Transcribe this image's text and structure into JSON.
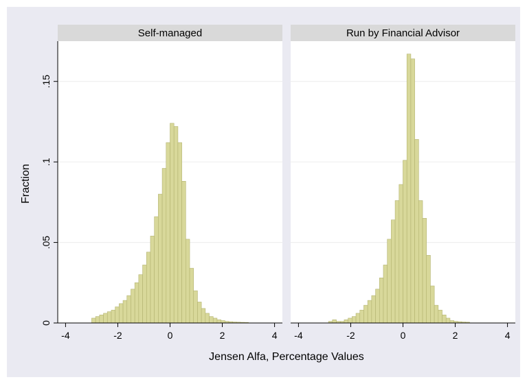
{
  "chart_data": {
    "type": "bar",
    "ylabel": "Fraction",
    "xlabel": "Jensen Alfa, Percentage Values",
    "xlim": [
      -4.3,
      4.3
    ],
    "ylim": [
      0,
      0.175
    ],
    "x_ticks": [
      -4,
      -2,
      0,
      2,
      4
    ],
    "x_tick_labels": [
      "-4",
      "-2",
      "0",
      "2",
      "4"
    ],
    "y_ticks": [
      0,
      0.05,
      0.1,
      0.15
    ],
    "y_tick_labels": [
      "0",
      ".05",
      ".1",
      ".15"
    ],
    "grid": true,
    "bin_width": 0.15,
    "bar_color": "#d8d89a",
    "bar_edge_color": "#b3b370",
    "panels": [
      {
        "title": "Self-managed",
        "bins_start": [
          -3.0,
          -2.85,
          -2.7,
          -2.55,
          -2.4,
          -2.25,
          -2.1,
          -1.95,
          -1.8,
          -1.65,
          -1.5,
          -1.35,
          -1.2,
          -1.05,
          -0.9,
          -0.75,
          -0.6,
          -0.45,
          -0.3,
          -0.15,
          0.0,
          0.15,
          0.3,
          0.45,
          0.6,
          0.75,
          0.9,
          1.05,
          1.2,
          1.35,
          1.5,
          1.65,
          1.8,
          1.95,
          2.1,
          2.25,
          2.4,
          2.55,
          2.7,
          2.85
        ],
        "values": [
          0.003,
          0.004,
          0.005,
          0.006,
          0.007,
          0.008,
          0.01,
          0.012,
          0.014,
          0.017,
          0.021,
          0.025,
          0.03,
          0.036,
          0.044,
          0.054,
          0.066,
          0.08,
          0.096,
          0.112,
          0.124,
          0.122,
          0.112,
          0.088,
          0.052,
          0.034,
          0.02,
          0.013,
          0.009,
          0.006,
          0.004,
          0.003,
          0.002,
          0.0015,
          0.001,
          0.0008,
          0.0006,
          0.0005,
          0.0004,
          0.0003
        ]
      },
      {
        "title": "Run by Financial Advisor",
        "bins_start": [
          -2.85,
          -2.7,
          -2.55,
          -2.4,
          -2.25,
          -2.1,
          -1.95,
          -1.8,
          -1.65,
          -1.5,
          -1.35,
          -1.2,
          -1.05,
          -0.9,
          -0.75,
          -0.6,
          -0.45,
          -0.3,
          -0.15,
          0.0,
          0.15,
          0.3,
          0.45,
          0.6,
          0.75,
          0.9,
          1.05,
          1.2,
          1.35,
          1.5,
          1.65,
          1.8,
          1.95,
          2.1,
          2.25,
          2.4
        ],
        "values": [
          0.001,
          0.002,
          0.001,
          0.001,
          0.002,
          0.003,
          0.004,
          0.006,
          0.008,
          0.011,
          0.014,
          0.017,
          0.021,
          0.028,
          0.036,
          0.052,
          0.064,
          0.076,
          0.086,
          0.101,
          0.167,
          0.164,
          0.114,
          0.076,
          0.065,
          0.042,
          0.023,
          0.011,
          0.008,
          0.005,
          0.003,
          0.0015,
          0.001,
          0.0008,
          0.0006,
          0.0005
        ]
      }
    ]
  }
}
